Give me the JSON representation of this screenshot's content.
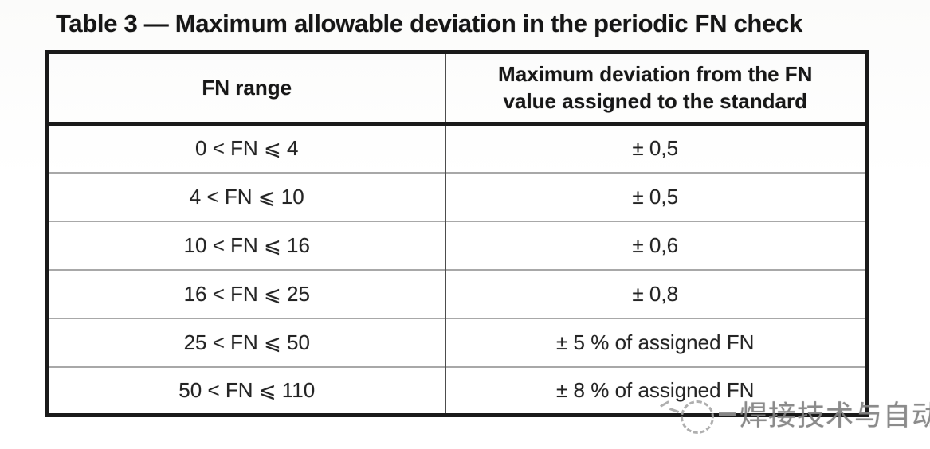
{
  "document": {
    "title": "Table 3 — Maximum allowable deviation in the periodic FN check"
  },
  "table": {
    "columns": [
      "FN range",
      "Maximum deviation from the FN value assigned to the standard"
    ],
    "rows": [
      {
        "fn_range": "0 < FN ⩽ 4",
        "max_deviation": "± 0,5"
      },
      {
        "fn_range": "4 < FN ⩽ 10",
        "max_deviation": "± 0,5"
      },
      {
        "fn_range": "10 < FN ⩽ 16",
        "max_deviation": "± 0,6"
      },
      {
        "fn_range": "16 < FN ⩽ 25",
        "max_deviation": "± 0,8"
      },
      {
        "fn_range": "25 < FN ⩽ 50",
        "max_deviation": "± 5 % of assigned FN"
      },
      {
        "fn_range": "50 < FN ⩽ 110",
        "max_deviation": "± 8 % of assigned FN"
      }
    ]
  },
  "watermark": {
    "text": "焊接技术与自动化",
    "color": "#828282"
  },
  "colors": {
    "outer_border": "#1a1a1a",
    "column_divider": "#4d4d4d",
    "row_divider": "#a8a8a8",
    "text": "#242424"
  }
}
